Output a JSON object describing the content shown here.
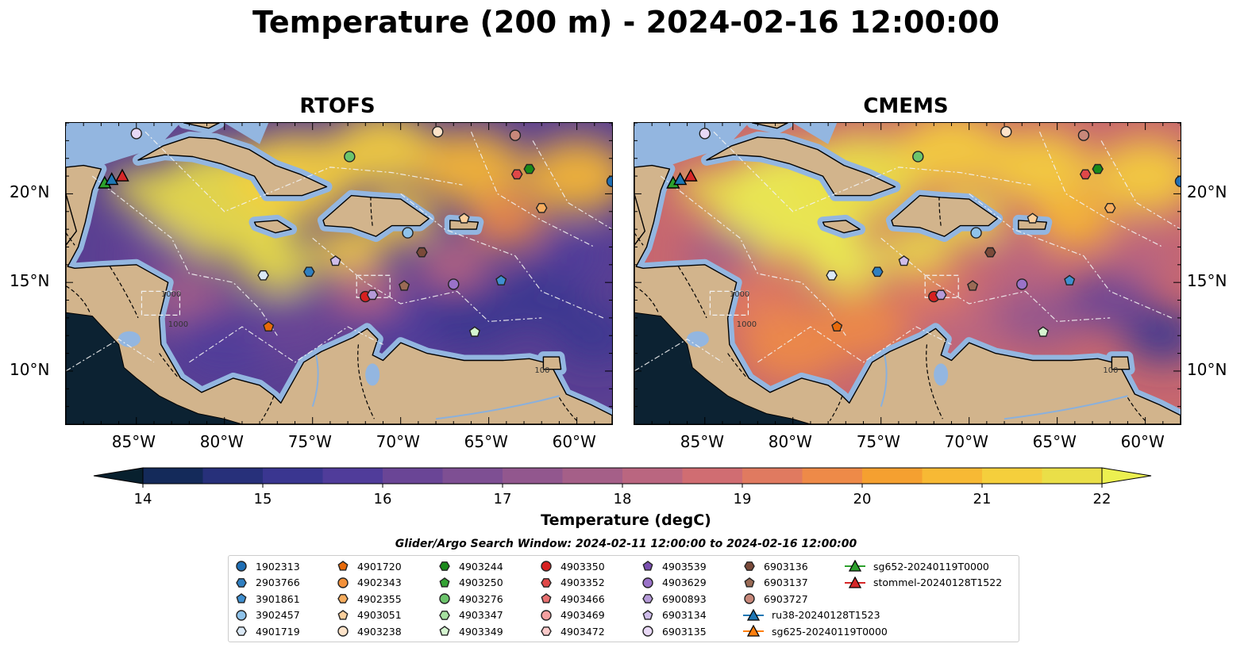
{
  "figure": {
    "title": "Temperature (200 m) - 2024-02-16 12:00:00"
  },
  "panels": [
    {
      "title": "RTOFS"
    },
    {
      "title": "CMEMS"
    }
  ],
  "axes": {
    "lon_ticks": [
      "85°W",
      "80°W",
      "75°W",
      "70°W",
      "65°W",
      "60°W"
    ],
    "lat_ticks": [
      "20°N",
      "15°N",
      "10°N"
    ],
    "lon_range": [
      -89,
      -58
    ],
    "lat_range": [
      7,
      24
    ]
  },
  "contour_labels": [
    "1000",
    "1000",
    "100"
  ],
  "colorbar": {
    "label": "Temperature (degC)",
    "ticks": [
      "14",
      "15",
      "16",
      "17",
      "18",
      "19",
      "20",
      "21",
      "22"
    ],
    "vmin": 14,
    "vmax": 22
  },
  "search_window": "Glider/Argo Search Window: 2024-02-11 12:00:00 to 2024-02-16 12:00:00",
  "legend": {
    "entries": [
      {
        "label": "1902313",
        "marker": "circle",
        "color": "#1f6eb4"
      },
      {
        "label": "2903766",
        "marker": "hexagon",
        "color": "#2f7fc1"
      },
      {
        "label": "3901861",
        "marker": "pentagon",
        "color": "#3f8fd0"
      },
      {
        "label": "3902457",
        "marker": "circle",
        "color": "#8fc3ea"
      },
      {
        "label": "4901719",
        "marker": "hexagon",
        "color": "#dbe9f6"
      },
      {
        "label": "4901720",
        "marker": "pentagon",
        "color": "#e86a0a"
      },
      {
        "label": "4902343",
        "marker": "circle",
        "color": "#f3913a"
      },
      {
        "label": "4902355",
        "marker": "hexagon",
        "color": "#f7ad5e"
      },
      {
        "label": "4903051",
        "marker": "pentagon",
        "color": "#fbcf9c"
      },
      {
        "label": "4903238",
        "marker": "circle",
        "color": "#fde3c9"
      },
      {
        "label": "4903244",
        "marker": "hexagon",
        "color": "#1a8a1a"
      },
      {
        "label": "4903250",
        "marker": "pentagon",
        "color": "#35a335"
      },
      {
        "label": "4903276",
        "marker": "circle",
        "color": "#6cc46c"
      },
      {
        "label": "4903347",
        "marker": "hexagon",
        "color": "#a6e0a0"
      },
      {
        "label": "4903349",
        "marker": "pentagon",
        "color": "#d5f5d0"
      },
      {
        "label": "4903350",
        "marker": "circle",
        "color": "#d62020"
      },
      {
        "label": "4903352",
        "marker": "hexagon",
        "color": "#e04848"
      },
      {
        "label": "4903466",
        "marker": "pentagon",
        "color": "#e87070"
      },
      {
        "label": "4903469",
        "marker": "circle",
        "color": "#f4a0a0"
      },
      {
        "label": "4903472",
        "marker": "hexagon",
        "color": "#fbcaca"
      },
      {
        "label": "4903539",
        "marker": "pentagon",
        "color": "#7a4fb0"
      },
      {
        "label": "4903629",
        "marker": "circle",
        "color": "#9a72c8"
      },
      {
        "label": "6900893",
        "marker": "hexagon",
        "color": "#b59ad8"
      },
      {
        "label": "6903134",
        "marker": "pentagon",
        "color": "#cfbdea"
      },
      {
        "label": "6903135",
        "marker": "circle",
        "color": "#e8d8f5"
      },
      {
        "label": "6903136",
        "marker": "hexagon",
        "color": "#7a4a3a"
      },
      {
        "label": "6903137",
        "marker": "pentagon",
        "color": "#9a6a55"
      },
      {
        "label": "6903727",
        "marker": "circle",
        "color": "#c8887a"
      },
      {
        "label": "ru38-20240128T1523",
        "marker": "triangle-line",
        "color": "#1f77b4"
      },
      {
        "label": "sg625-20240119T0000",
        "marker": "triangle-line",
        "color": "#ff7f0e"
      },
      {
        "label": "sg652-20240119T0000",
        "marker": "triangle-line",
        "color": "#2ca02c"
      },
      {
        "label": "stommel-20240128T1522",
        "marker": "triangle-line",
        "color": "#d62728"
      }
    ]
  },
  "observations": [
    {
      "id": "6903135",
      "lon": -85.0,
      "lat": 23.4
    },
    {
      "id": "4903238",
      "lon": -67.9,
      "lat": 23.5
    },
    {
      "id": "6903727",
      "lon": -63.5,
      "lat": 23.3
    },
    {
      "id": "4903276",
      "lon": -72.9,
      "lat": 22.1
    },
    {
      "id": "4903244",
      "lon": -62.7,
      "lat": 21.4
    },
    {
      "id": "4903352",
      "lon": -63.4,
      "lat": 21.1
    },
    {
      "id": "1902313",
      "lon": -58.0,
      "lat": 20.7
    },
    {
      "id": "4902355",
      "lon": -62.0,
      "lat": 19.2
    },
    {
      "id": "4903051",
      "lon": -66.4,
      "lat": 18.6
    },
    {
      "id": "3902457",
      "lon": -69.6,
      "lat": 17.8
    },
    {
      "id": "6903136",
      "lon": -68.8,
      "lat": 16.7
    },
    {
      "id": "6903134",
      "lon": -73.7,
      "lat": 16.2
    },
    {
      "id": "2903766",
      "lon": -75.2,
      "lat": 15.6
    },
    {
      "id": "4901719",
      "lon": -77.8,
      "lat": 15.4
    },
    {
      "id": "6903137",
      "lon": -69.8,
      "lat": 14.8
    },
    {
      "id": "4903629",
      "lon": -67.0,
      "lat": 14.9
    },
    {
      "id": "3901861",
      "lon": -64.3,
      "lat": 15.1
    },
    {
      "id": "4903350",
      "lon": -72.0,
      "lat": 14.2
    },
    {
      "id": "6900893",
      "lon": -71.6,
      "lat": 14.3
    },
    {
      "id": "4901720",
      "lon": -77.5,
      "lat": 12.5
    },
    {
      "id": "4903349",
      "lon": -65.8,
      "lat": 12.2
    }
  ],
  "gliders": [
    {
      "id": "sg652-20240119T0000",
      "lon": -86.8,
      "lat": 20.6
    },
    {
      "id": "ru38-20240128T1523",
      "lon": -86.4,
      "lat": 20.8
    },
    {
      "id": "stommel-20240128T1522",
      "lon": -85.8,
      "lat": 21.0
    }
  ]
}
